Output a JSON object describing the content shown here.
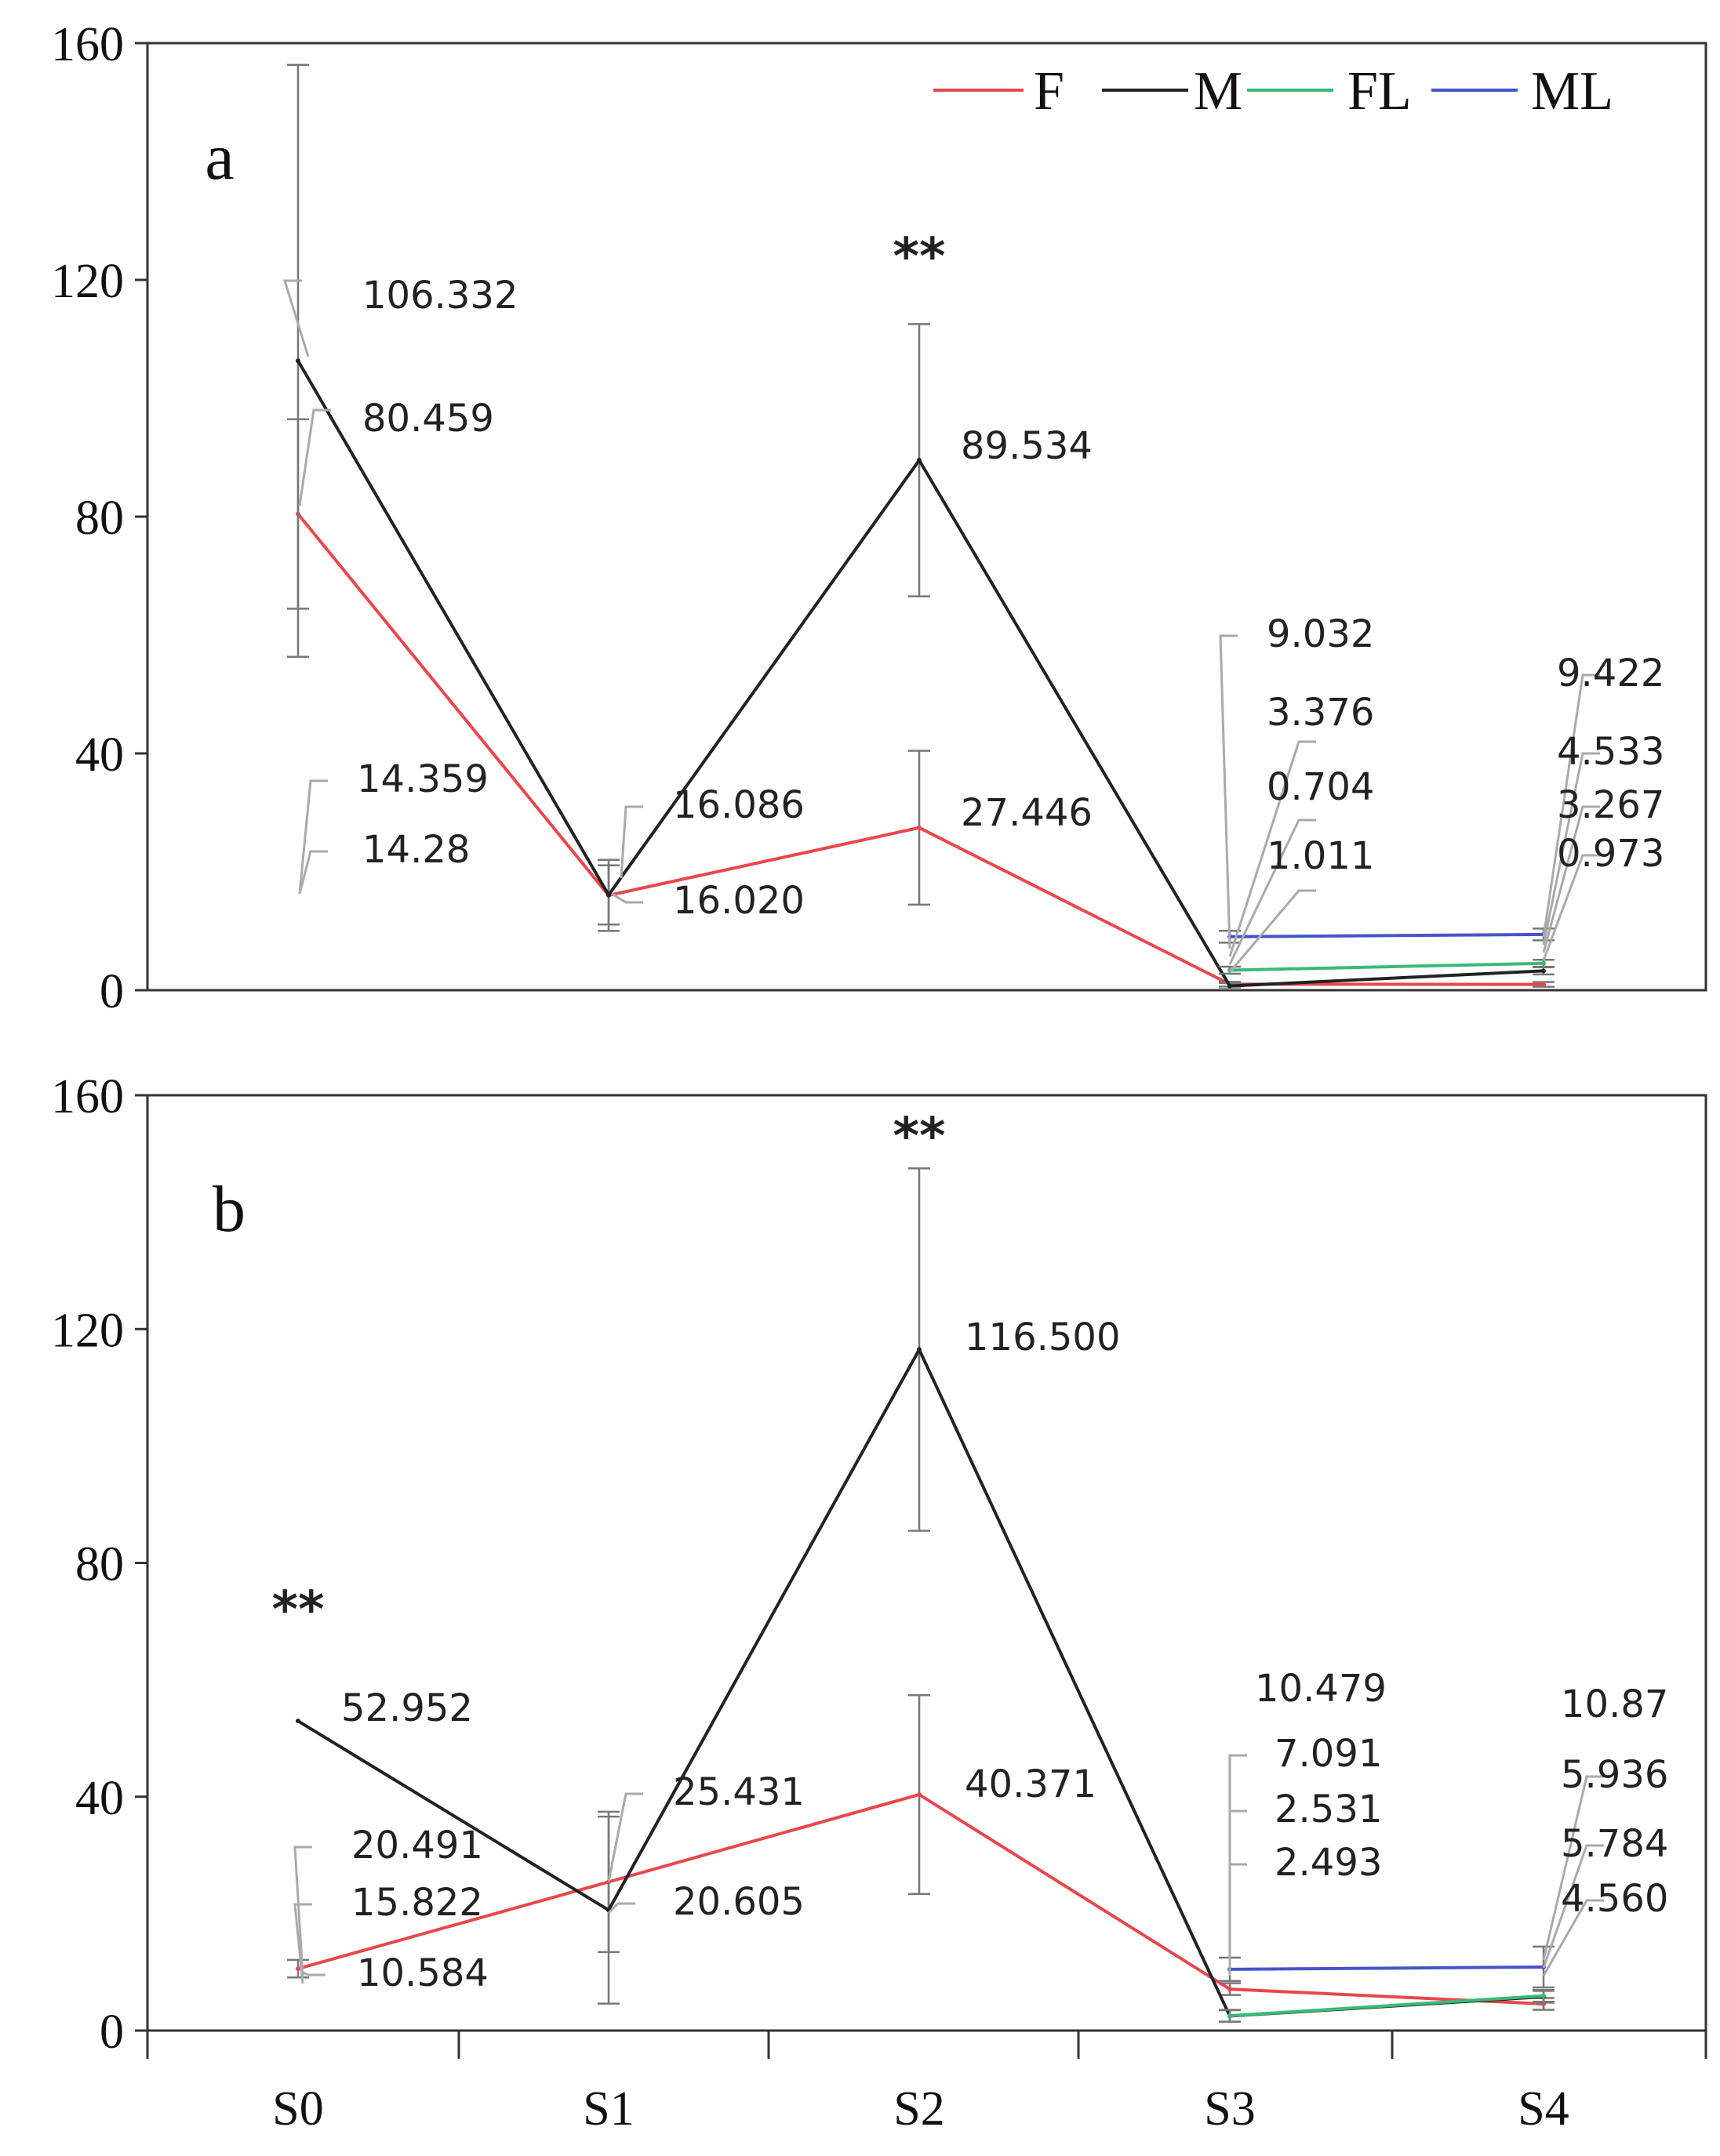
{
  "chart_data": [
    {
      "type": "line",
      "panel_label": "a",
      "categories": [
        "S0",
        "S1",
        "S2",
        "S3",
        "S4"
      ],
      "ylim": [
        0,
        160
      ],
      "yticks": [
        "0",
        "40",
        "80",
        "120",
        "160"
      ],
      "show_x_tick_labels": false,
      "legend_position": "top-right",
      "series": [
        {
          "name": "F",
          "color": "#e8474c",
          "points": [
            [
              0,
              80.459
            ],
            [
              1,
              16.02
            ],
            [
              2,
              27.446
            ],
            [
              3,
              1.011
            ],
            [
              4,
              0.973
            ]
          ],
          "err": [
            16,
            6,
            13,
            0.4,
            0.4
          ]
        },
        {
          "name": "M",
          "color": "#222222",
          "points": [
            [
              0,
              106.332
            ],
            [
              1,
              16.086
            ],
            [
              2,
              89.534
            ],
            [
              3,
              0.704
            ],
            [
              4,
              3.267
            ]
          ],
          "err": [
            50,
            5,
            23,
            0.5,
            0.6
          ]
        },
        {
          "name": "FL",
          "color": "#3cb878",
          "points": [
            [
              3,
              3.376
            ],
            [
              4,
              4.533
            ]
          ],
          "err": [
            0.6,
            0.6
          ]
        },
        {
          "name": "ML",
          "color": "#4455cc",
          "points": [
            [
              3,
              9.032
            ],
            [
              4,
              9.422
            ]
          ],
          "err": [
            1,
            1
          ]
        }
      ],
      "data_labels": [
        "106.332",
        "80.459",
        "14.359",
        "14.28",
        "16.086",
        "16.020",
        "89.534",
        "27.446",
        "9.032",
        "3.376",
        "0.704",
        "1.011",
        "9.422",
        "4.533",
        "3.267",
        "0.973"
      ],
      "annotations": [
        {
          "text": "**",
          "category": "S2",
          "y": 124
        }
      ]
    },
    {
      "type": "line",
      "panel_label": "b",
      "categories": [
        "S0",
        "S1",
        "S2",
        "S3",
        "S4"
      ],
      "ylim": [
        0,
        160
      ],
      "yticks": [
        "0",
        "40",
        "80",
        "120",
        "160"
      ],
      "show_x_tick_labels": true,
      "series": [
        {
          "name": "F",
          "color": "#e8474c",
          "points": [
            [
              0,
              10.584
            ],
            [
              1,
              25.431
            ],
            [
              2,
              40.371
            ],
            [
              3,
              7.091
            ],
            [
              4,
              4.56
            ]
          ],
          "err": [
            1.5,
            12,
            17,
            1,
            1
          ]
        },
        {
          "name": "M",
          "color": "#222222",
          "points": [
            [
              0,
              52.952
            ],
            [
              1,
              20.605
            ],
            [
              2,
              116.5
            ],
            [
              3,
              2.493
            ],
            [
              4,
              5.784
            ]
          ],
          "err": [
            0,
            16,
            31,
            1,
            1
          ]
        },
        {
          "name": "FL",
          "color": "#3cb878",
          "points": [
            [
              3,
              2.531
            ],
            [
              4,
              5.936
            ]
          ],
          "err": [
            1,
            1
          ]
        },
        {
          "name": "ML",
          "color": "#4455cc",
          "points": [
            [
              3,
              10.479
            ],
            [
              4,
              10.87
            ]
          ],
          "err": [
            2,
            3.5
          ]
        }
      ],
      "data_labels": [
        "52.952",
        "20.491",
        "15.822",
        "10.584",
        "25.431",
        "20.605",
        "116.500",
        "40.371",
        "10.479",
        "7.091",
        "2.531",
        "2.493",
        "10.87",
        "5.936",
        "5.784",
        "4.560"
      ],
      "annotations": [
        {
          "text": "**",
          "category": "S2",
          "y": 153
        },
        {
          "text": "**",
          "category": "S0",
          "y": 72
        }
      ]
    }
  ]
}
